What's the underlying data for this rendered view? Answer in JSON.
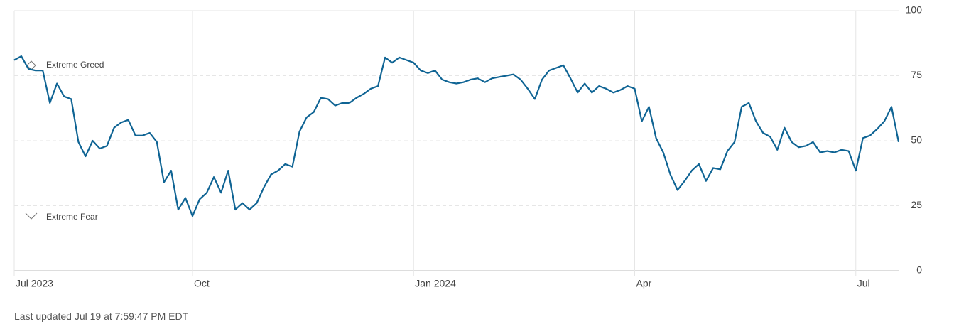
{
  "chart_data": {
    "type": "line",
    "categories": [
      "Jul 2023",
      null,
      null,
      null,
      null,
      null,
      null,
      null,
      null,
      null,
      null,
      null,
      null,
      null,
      null,
      null,
      null,
      null,
      null,
      null,
      null,
      null,
      null,
      null,
      null,
      "Oct",
      null,
      null,
      null,
      null,
      null,
      null,
      null,
      null,
      null,
      null,
      null,
      null,
      null,
      null,
      null,
      null,
      null,
      null,
      null,
      null,
      null,
      null,
      null,
      null,
      null,
      null,
      null,
      null,
      null,
      null,
      "Jan 2024",
      null,
      null,
      null,
      null,
      null,
      null,
      null,
      null,
      null,
      null,
      null,
      null,
      null,
      null,
      null,
      null,
      null,
      null,
      null,
      null,
      null,
      null,
      null,
      null,
      null,
      null,
      null,
      null,
      null,
      null,
      "Apr",
      null,
      null,
      null,
      null,
      null,
      null,
      null,
      null,
      null,
      null,
      null,
      null,
      null,
      null,
      null,
      null,
      null,
      null,
      null,
      null,
      null,
      null,
      null,
      null,
      null,
      null,
      null,
      null,
      null,
      null,
      "Jul",
      null,
      null,
      null,
      null,
      null,
      null
    ],
    "values": [
      81,
      82.5,
      77.6,
      77,
      77,
      64.5,
      72,
      67,
      66,
      49.5,
      44,
      50,
      47,
      48,
      55,
      57,
      58,
      52,
      52,
      53,
      49.5,
      34,
      38.5,
      23.5,
      28,
      21,
      27.5,
      30,
      36,
      30,
      38.5,
      23.5,
      26,
      23.5,
      26,
      32,
      37,
      38.5,
      41,
      40,
      53.5,
      59,
      61,
      66.5,
      66,
      63.5,
      64.5,
      64.5,
      66.5,
      68,
      70,
      71,
      82,
      80,
      82,
      81,
      80,
      77,
      76,
      77,
      73.5,
      72.5,
      72,
      72.5,
      73.5,
      74,
      72.5,
      74,
      74.5,
      75,
      75.5,
      73.5,
      70,
      66,
      73.5,
      77,
      78,
      79,
      74,
      68.5,
      72,
      68.5,
      71,
      70,
      68.5,
      69.5,
      71,
      70,
      57.5,
      63,
      51,
      45.5,
      37,
      31,
      34.5,
      38.5,
      41,
      34.5,
      39.5,
      39,
      46,
      49.5,
      63,
      64.5,
      57.5,
      53,
      51.5,
      46.5,
      55,
      49.5,
      47.5,
      48,
      49.5,
      45.5,
      46,
      45.5,
      46.5,
      46,
      38.5,
      51,
      52,
      54.5,
      57.5,
      63,
      49.5
    ],
    "color": "#0f6494",
    "ylim": [
      0,
      100
    ],
    "yticks": [
      0,
      25,
      50,
      75,
      100
    ],
    "grid": true,
    "annotations": [
      "Extreme Greed",
      "Extreme Fear"
    ]
  },
  "footer": "Last updated Jul 19 at 7:59:47 PM EDT"
}
